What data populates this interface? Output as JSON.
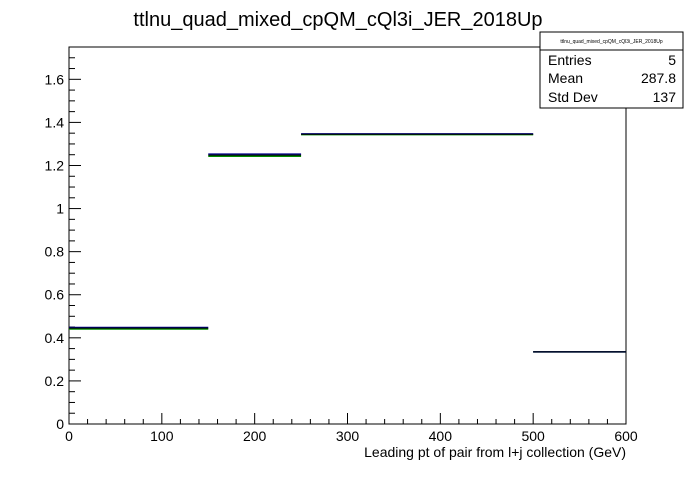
{
  "chart_data": {
    "type": "histogram",
    "title": "ttlnu_quad_mixed_cpQM_cQl3i_JER_2018Up",
    "xlabel": "Leading pt of pair from l+j collection (GeV)",
    "ylabel": "",
    "xlim": [
      0,
      600
    ],
    "ylim": [
      0,
      1.75
    ],
    "x_ticks": [
      0,
      100,
      200,
      300,
      400,
      500,
      600
    ],
    "x_tick_labels": [
      "0",
      "100",
      "200",
      "300",
      "400",
      "500",
      "600"
    ],
    "y_ticks": [
      0,
      0.2,
      0.4,
      0.6,
      0.8,
      1,
      1.2,
      1.4,
      1.6
    ],
    "y_tick_labels": [
      "0",
      "0.2",
      "0.4",
      "0.6",
      "0.8",
      "1",
      "1.2",
      "1.4",
      "1.6"
    ],
    "grid": false,
    "bins": [
      {
        "x_low": 0,
        "x_high": 150,
        "value": 0.445,
        "up": 0.448,
        "down": 0.441
      },
      {
        "x_low": 150,
        "x_high": 250,
        "value": 1.248,
        "up": 1.253,
        "down": 1.243
      },
      {
        "x_low": 250,
        "x_high": 500,
        "value": 1.345,
        "up": 1.347,
        "down": 1.343
      },
      {
        "x_low": 500,
        "x_high": 600,
        "value": 0.335,
        "up": 0.335,
        "down": 0.335
      }
    ],
    "stats_box": {
      "title": "ttlnu_quad_mixed_cpQM_cQl3i_JER_2018Up",
      "rows": [
        {
          "label": "Entries",
          "value": "5"
        },
        {
          "label": "Mean",
          "value": "287.8"
        },
        {
          "label": "Std Dev",
          "value": "137"
        }
      ],
      "placement": "top-right"
    },
    "colors": {
      "nominal": "#000000",
      "up": "#00008b",
      "down": "#008b00"
    }
  }
}
